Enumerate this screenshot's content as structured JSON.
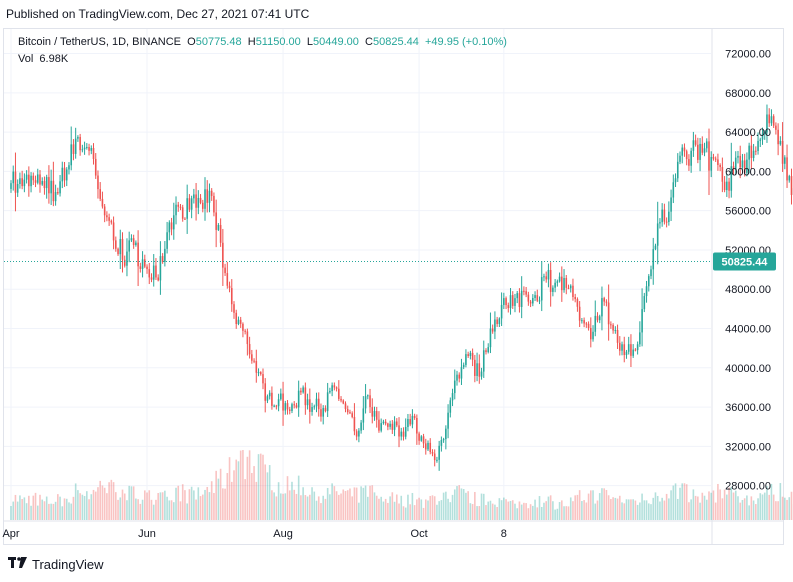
{
  "header": {
    "published": "Published on TradingView.com, Dec 27, 2021 07:41 UTC"
  },
  "legend": {
    "symbol": "Bitcoin / TetherUS, 1D, BINANCE",
    "o_label": "O",
    "o_value": "50775.48",
    "h_label": "H",
    "h_value": "51150.00",
    "l_label": "L",
    "l_value": "50449.00",
    "c_label": "C",
    "c_value": "50825.44",
    "change": "+49.95 (+0.10%)",
    "vol_label": "Vol",
    "vol_value": "6.98K"
  },
  "footer": {
    "brand": "TradingView"
  },
  "colors": {
    "up": "#26a69a",
    "down": "#ef5350",
    "grid": "#f0f3fa",
    "axis_text": "#131722"
  },
  "chart_data": {
    "type": "candlestick",
    "title": "Bitcoin / TetherUS, 1D, BINANCE",
    "ylim": [
      24500,
      74500
    ],
    "yticks": [
      "72000.00",
      "68000.00",
      "64000.00",
      "60000.00",
      "56000.00",
      "52000.00",
      "48000.00",
      "44000.00",
      "40000.00",
      "36000.00",
      "32000.00",
      "28000.00"
    ],
    "xticks": [
      {
        "label": "Apr",
        "day": 0
      },
      {
        "label": "Jun",
        "day": 61
      },
      {
        "label": "Aug",
        "day": 122
      },
      {
        "label": "Oct",
        "day": 183
      },
      {
        "label": "8",
        "day": 221
      }
    ],
    "last_price": "50825.44",
    "last_price_value": 50825.44,
    "grid": true,
    "closes_every_5_days": [
      58800,
      58500,
      59100,
      58300,
      57900,
      60200,
      63500,
      62100,
      57200,
      54800,
      51000,
      52500,
      50300,
      49200,
      53800,
      56400,
      56100,
      56800,
      57500,
      50200,
      45600,
      43700,
      39500,
      37100,
      36800,
      35600,
      37500,
      36000,
      35900,
      38000,
      35800,
      33000,
      37200,
      33600,
      34300,
      33500,
      35100,
      32300,
      30600,
      33800,
      39300,
      41200,
      39100,
      44000,
      46400,
      46300,
      47800,
      47400,
      49000,
      48800,
      48100,
      44800,
      42900,
      47100,
      43800,
      41300,
      41800,
      48300,
      54700,
      55900,
      61600,
      62100,
      61900,
      61300,
      58100,
      61400,
      61200,
      63100,
      64900,
      63100,
      57600,
      57400,
      56800,
      53600,
      49500,
      48300,
      48600,
      47600,
      46500,
      48300,
      50825.44
    ],
    "volume_profile_every_5_days": [
      60,
      55,
      58,
      48,
      52,
      57,
      80,
      70,
      80,
      85,
      75,
      70,
      68,
      55,
      60,
      80,
      65,
      70,
      90,
      110,
      140,
      170,
      150,
      120,
      95,
      85,
      90,
      80,
      70,
      75,
      70,
      65,
      80,
      60,
      60,
      50,
      55,
      45,
      60,
      70,
      75,
      60,
      55,
      50,
      55,
      40,
      45,
      50,
      55,
      40,
      45,
      60,
      65,
      70,
      60,
      55,
      50,
      60,
      70,
      75,
      80,
      65,
      60,
      70,
      75,
      60,
      55,
      65,
      70,
      80,
      70,
      60,
      55,
      65,
      75,
      60,
      55,
      50,
      45,
      40,
      35
    ]
  }
}
